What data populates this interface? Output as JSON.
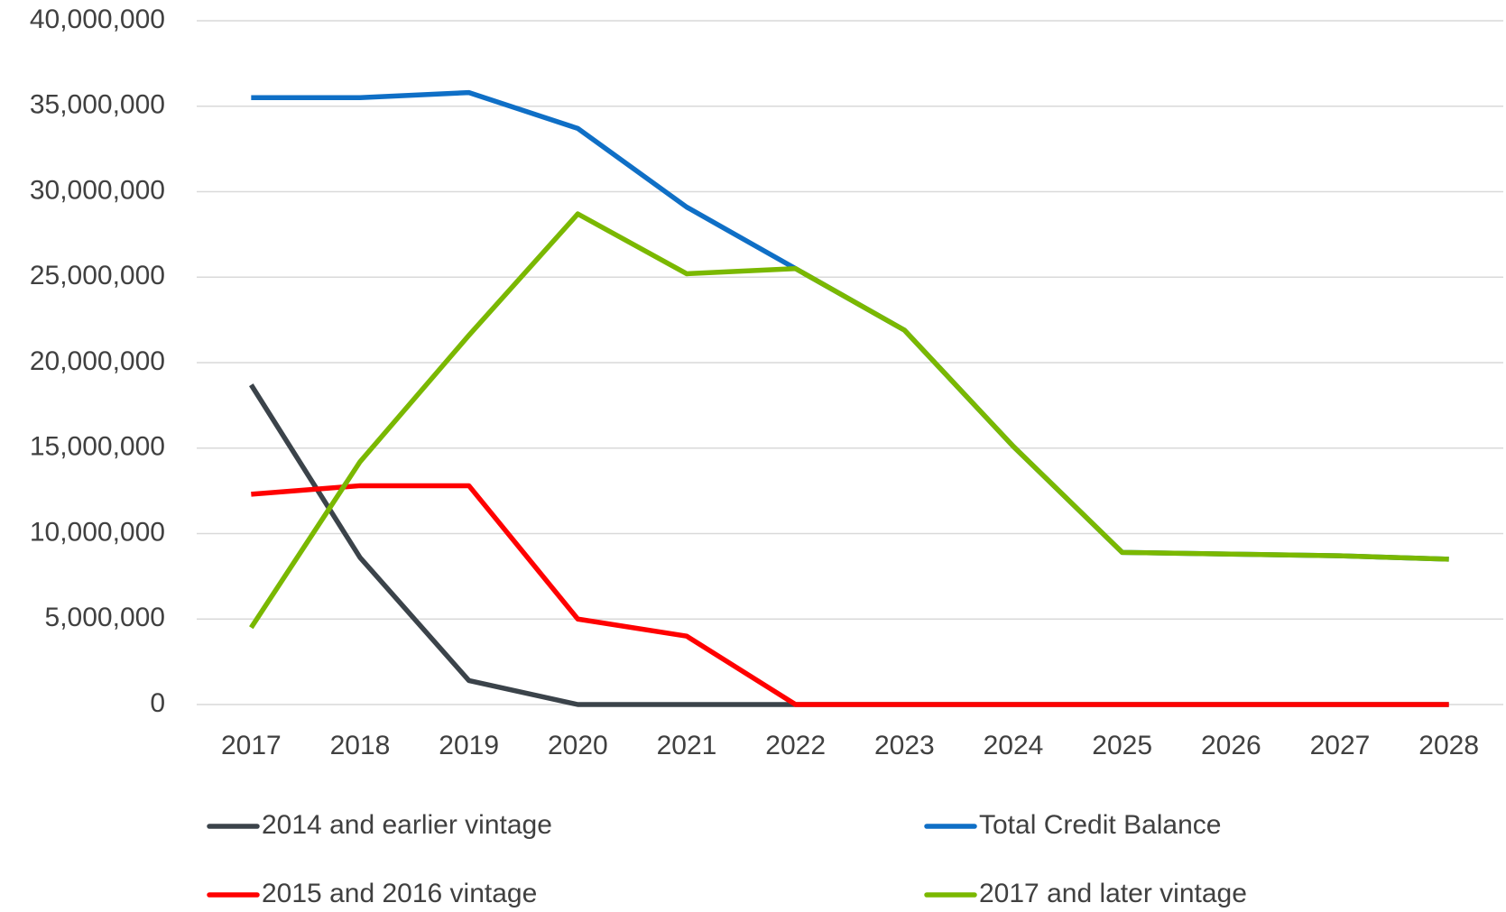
{
  "chart_data": {
    "type": "line",
    "categories": [
      "2017",
      "2018",
      "2019",
      "2020",
      "2021",
      "2022",
      "2023",
      "2024",
      "2025",
      "2026",
      "2027",
      "2028"
    ],
    "series": [
      {
        "name": "2014 and earlier vintage",
        "color": "#3b434a",
        "values": [
          18700000,
          8600000,
          1400000,
          0,
          0,
          0,
          0,
          0,
          0,
          0,
          0,
          0
        ]
      },
      {
        "name": "Total Credit Balance",
        "color": "#0f6fc6",
        "values": [
          35500000,
          35500000,
          35800000,
          33700000,
          29100000,
          25500000,
          21900000,
          15100000,
          8900000,
          8800000,
          8700000,
          8500000
        ]
      },
      {
        "name": "2015 and 2016 vintage",
        "color": "#ff0000",
        "values": [
          12300000,
          12800000,
          12800000,
          5000000,
          4000000,
          0,
          0,
          0,
          0,
          0,
          0,
          0
        ]
      },
      {
        "name": "2017 and later vintage",
        "color": "#7ab800",
        "values": [
          4500000,
          14200000,
          21600000,
          28700000,
          25200000,
          25500000,
          21900000,
          15100000,
          8900000,
          8800000,
          8700000,
          8500000
        ]
      }
    ],
    "ylim": [
      0,
      40000000
    ],
    "yticks": [
      0,
      {
        "value": 5000000,
        "label": "5,000,000"
      },
      {
        "value": 10000000,
        "label": "10,000,000"
      },
      {
        "value": 15000000,
        "label": "15,000,000"
      },
      {
        "value": 20000000,
        "label": "20,000,000"
      },
      {
        "value": 25000000,
        "label": "25,000,000"
      },
      {
        "value": 30000000,
        "label": "30,000,000"
      },
      {
        "value": 35000000,
        "label": "35,000,000"
      },
      {
        "value": 40000000,
        "label": "40,000,000"
      }
    ],
    "grid": true,
    "legend": "bottom"
  }
}
